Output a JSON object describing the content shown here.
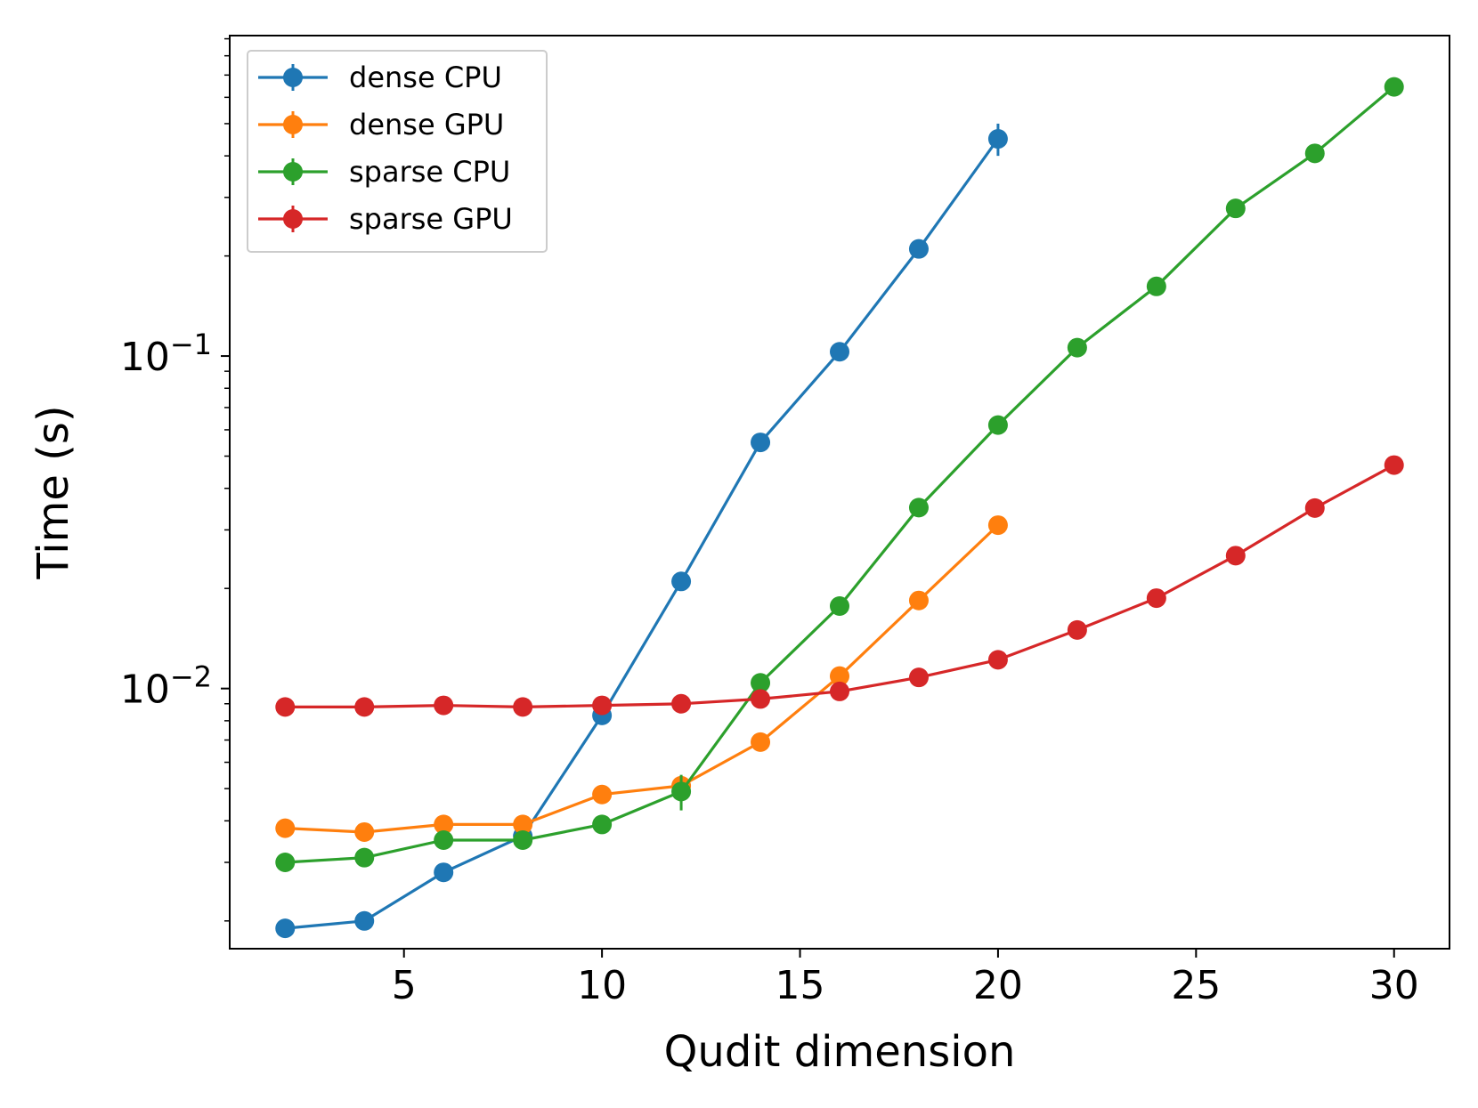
{
  "chart_data": {
    "type": "line",
    "title": "",
    "xlabel": "Qudit dimension",
    "ylabel": "Time (s)",
    "yscale": "log",
    "xlim": [
      0.6,
      31.4
    ],
    "ylim": [
      0.00165,
      0.92
    ],
    "x_ticks": [
      5,
      10,
      15,
      20,
      25,
      30
    ],
    "x_tick_labels": [
      "5",
      "10",
      "15",
      "20",
      "25",
      "30"
    ],
    "y_major_ticks": [
      {
        "value": 0.1,
        "base": "10",
        "exponent": "−1"
      },
      {
        "value": 0.01,
        "base": "10",
        "exponent": "−2"
      }
    ],
    "legend_position": "upper-left",
    "series": [
      {
        "name": "dense CPU",
        "color": "#1f77b4",
        "x": [
          2,
          4,
          6,
          8,
          10,
          12,
          14,
          16,
          18,
          20
        ],
        "y": [
          0.0019,
          0.002,
          0.0028,
          0.0036,
          0.0083,
          0.021,
          0.055,
          0.103,
          0.21,
          0.45
        ],
        "err": [
          0,
          0,
          0,
          0,
          0,
          0,
          0,
          0,
          0,
          0.05
        ]
      },
      {
        "name": "dense GPU",
        "color": "#ff7f0e",
        "x": [
          2,
          4,
          6,
          8,
          10,
          12,
          14,
          16,
          18,
          20
        ],
        "y": [
          0.0038,
          0.0037,
          0.0039,
          0.0039,
          0.0048,
          0.0051,
          0.0069,
          0.0109,
          0.0184,
          0.031
        ],
        "err": [
          0,
          0,
          0,
          0,
          0,
          0,
          0,
          0,
          0,
          0
        ]
      },
      {
        "name": "sparse CPU",
        "color": "#2ca02c",
        "x": [
          2,
          4,
          6,
          8,
          10,
          12,
          14,
          16,
          18,
          20,
          22,
          24,
          26,
          28,
          30
        ],
        "y": [
          0.003,
          0.0031,
          0.0035,
          0.0035,
          0.0039,
          0.0049,
          0.0104,
          0.0177,
          0.035,
          0.062,
          0.106,
          0.162,
          0.278,
          0.407,
          0.645
        ],
        "err": [
          0,
          0,
          0,
          0,
          0,
          0.0006,
          0,
          0,
          0,
          0,
          0,
          0,
          0,
          0,
          0
        ]
      },
      {
        "name": "sparse GPU",
        "color": "#d62728",
        "x": [
          2,
          4,
          6,
          8,
          10,
          12,
          14,
          16,
          18,
          20,
          22,
          24,
          26,
          28,
          30
        ],
        "y": [
          0.0088,
          0.0088,
          0.0089,
          0.0088,
          0.0089,
          0.009,
          0.0093,
          0.0098,
          0.0108,
          0.0122,
          0.015,
          0.0187,
          0.0251,
          0.0349,
          0.047
        ],
        "err": [
          0,
          0,
          0,
          0,
          0,
          0,
          0,
          0,
          0,
          0,
          0,
          0,
          0,
          0,
          0
        ]
      }
    ]
  }
}
